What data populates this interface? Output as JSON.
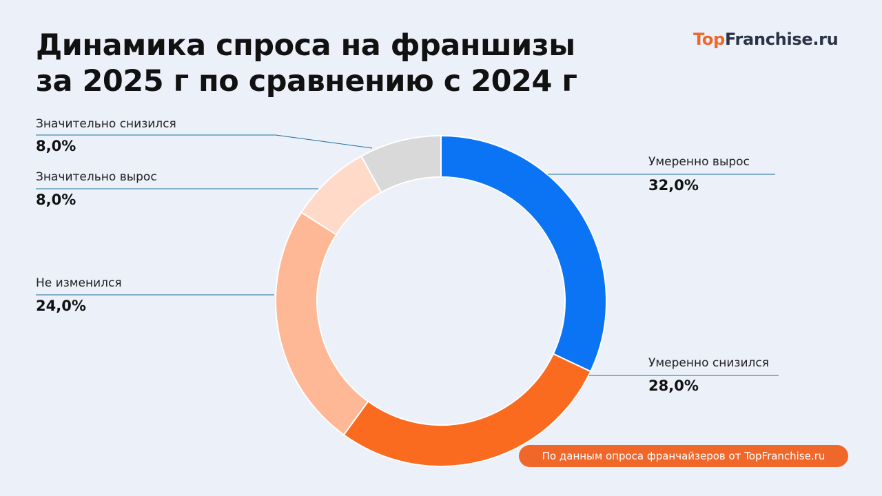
{
  "title_line1": "Динамика спроса на франшизы",
  "title_line2": "за 2025 г по сравнению с 2024 г",
  "logo": {
    "part1": "Top",
    "part2": "Franchise.ru"
  },
  "source_note": "По данным опроса франчайзеров от TopFranchise.ru",
  "labels": [
    {
      "name": "Умеренно вырос",
      "value": "32,0%"
    },
    {
      "name": "Умеренно снизился",
      "value": "28,0%"
    },
    {
      "name": "Не изменился",
      "value": "24,0%"
    },
    {
      "name": "Значительно вырос",
      "value": "8,0%"
    },
    {
      "name": "Значительно снизился",
      "value": "8,0%"
    }
  ],
  "chart_data": {
    "type": "pie",
    "subtype": "donut",
    "title": "Динамика спроса на франшизы за 2025 г по сравнению с 2024 г",
    "categories": [
      "Умеренно вырос",
      "Умеренно снизился",
      "Не изменился",
      "Значительно вырос",
      "Значительно снизился"
    ],
    "values": [
      32.0,
      28.0,
      24.0,
      8.0,
      8.0
    ],
    "unit": "%",
    "colors": [
      "#0a74f5",
      "#fa6a1f",
      "#ffb896",
      "#ffdac8",
      "#d9d9d9"
    ],
    "start_angle": "12 o'clock, clockwise",
    "legend": "leader-line labels"
  }
}
